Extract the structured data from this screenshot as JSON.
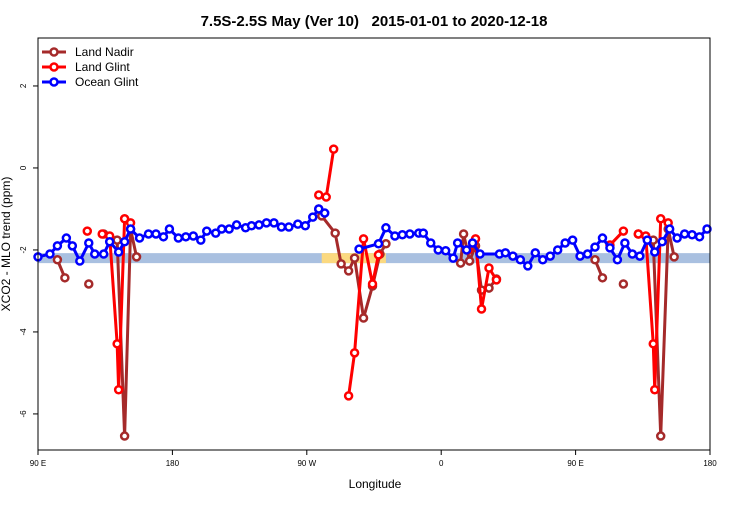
{
  "chart_data": {
    "type": "line",
    "title": "7.5S-2.5S May (Ver 10)   2015-01-01 to 2020-12-18",
    "xlabel": "Longitude",
    "ylabel": "XCO2 - MLO trend (ppm)",
    "xlim": [
      90,
      540
    ],
    "ylim": [
      -6.88,
      3.17
    ],
    "xticks": [
      {
        "value": 90,
        "label": "90 E"
      },
      180,
      {
        "value": 270,
        "label": "90 W"
      },
      {
        "value": 360,
        "label": "0"
      },
      {
        "value": 450,
        "label": "90 E"
      },
      {
        "value": 540,
        "label": "180"
      }
    ],
    "yticks": [
      -6,
      -4,
      -2,
      0,
      2
    ],
    "legend": "top-left",
    "bands": [
      {
        "color": "#a9c0e0",
        "y": -2.2,
        "x": [
          90,
          540
        ]
      },
      {
        "color": "#fbd980",
        "y": -2.2,
        "x": [
          280,
          323
        ]
      }
    ],
    "series": [
      {
        "name": "Land Nadir",
        "color": "#a52a2a",
        "x": [
          103,
          108,
          113,
          124,
          128,
          134,
          143,
          148,
          152,
          156,
          220,
          278,
          280,
          289,
          293,
          298,
          302,
          308,
          314,
          319,
          323,
          350,
          373,
          375,
          379,
          383,
          387,
          392,
          397,
          430,
          463,
          468,
          472,
          482,
          486,
          492,
          502,
          507,
          512,
          516
        ],
        "values": [
          -2.24,
          -2.68,
          null,
          -2.83,
          null,
          -1.61,
          -1.76,
          -6.54,
          -1.49,
          -2.17,
          null,
          -1.0,
          -1.17,
          -1.59,
          -2.34,
          -2.51,
          -2.2,
          -3.66,
          -2.88,
          -2.1,
          -1.85,
          null,
          -2.32,
          -1.61,
          -2.27,
          -1.9,
          -2.98,
          -2.93,
          -2.71,
          null,
          -2.24,
          -2.68,
          null,
          -2.83,
          null,
          -1.61,
          -1.76,
          -6.54,
          -1.49,
          -2.17
        ]
      },
      {
        "name": "Land Glint",
        "color": "#ff0000",
        "x": [
          123,
          126,
          133,
          138,
          143,
          144,
          148,
          152,
          220,
          278,
          283,
          288,
          290,
          298,
          302,
          308,
          314,
          318,
          350,
          378,
          383,
          387,
          392,
          397,
          430,
          473,
          482,
          486,
          492,
          497,
          502,
          503,
          507,
          512
        ],
        "values": [
          -1.54,
          null,
          -1.61,
          -1.66,
          -4.29,
          -5.41,
          -1.24,
          -1.34,
          null,
          -0.66,
          -0.71,
          0.46,
          null,
          -5.56,
          -4.51,
          -1.73,
          -2.83,
          -2.12,
          null,
          -2.0,
          -1.73,
          -3.44,
          -2.44,
          -2.73,
          null,
          -1.88,
          -1.54,
          null,
          -1.61,
          -1.66,
          -4.29,
          -5.41,
          -1.24,
          -1.34
        ]
      },
      {
        "name": "Ocean Glint",
        "color": "#0000ff",
        "x": [
          90,
          98,
          103,
          109,
          113,
          118,
          124,
          128,
          134,
          138,
          144,
          148,
          152,
          158,
          164,
          169,
          174,
          178,
          184,
          189,
          194,
          199,
          203,
          209,
          213,
          218,
          223,
          229,
          233,
          238,
          243,
          248,
          253,
          258,
          264,
          269,
          274,
          278,
          282,
          294,
          305,
          318,
          323,
          329,
          334,
          339,
          345,
          348,
          353,
          358,
          363,
          368,
          371,
          377,
          381,
          386,
          399,
          403,
          408,
          413,
          418,
          423,
          428,
          433,
          438,
          443,
          448,
          453,
          458,
          463,
          468,
          473,
          478,
          483,
          488,
          493,
          498,
          503,
          508,
          513,
          518,
          523,
          528,
          533,
          538
        ],
        "values": [
          -2.17,
          -2.1,
          -1.9,
          -1.71,
          -1.9,
          -2.27,
          -1.83,
          -2.1,
          -2.1,
          -1.8,
          -2.05,
          -1.8,
          -1.49,
          -1.71,
          -1.61,
          -1.61,
          -1.68,
          -1.49,
          -1.71,
          -1.68,
          -1.66,
          -1.76,
          -1.54,
          -1.59,
          -1.49,
          -1.49,
          -1.39,
          -1.46,
          -1.41,
          -1.39,
          -1.34,
          -1.34,
          -1.44,
          -1.44,
          -1.37,
          -1.41,
          -1.2,
          -1.0,
          -1.1,
          null,
          -1.98,
          -1.85,
          -1.46,
          -1.66,
          -1.63,
          -1.61,
          -1.59,
          -1.59,
          -1.83,
          -2.0,
          -2.02,
          -2.2,
          -1.83,
          -2.0,
          -1.83,
          -2.1,
          -2.1,
          -2.07,
          -2.15,
          -2.24,
          -2.39,
          -2.07,
          -2.24,
          -2.15,
          -2.0,
          -1.83,
          -1.76,
          -2.15,
          -2.1,
          -1.93,
          -1.71,
          -1.95,
          -2.24,
          -1.83,
          -2.1,
          -2.15,
          -1.76,
          -2.05,
          -1.8,
          -1.49,
          -1.71,
          -1.61,
          -1.63,
          -1.68,
          -1.49
        ]
      }
    ]
  }
}
